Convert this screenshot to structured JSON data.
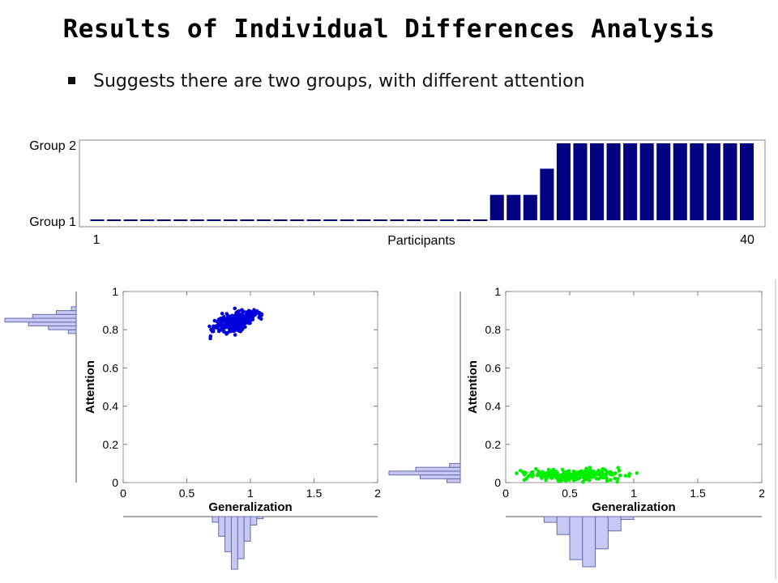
{
  "slide": {
    "title": "Results of Individual Differences Analysis",
    "bullet": "Suggests there are two groups, with different attention"
  },
  "colors": {
    "bar": "#000080",
    "group1_points": "#0000dd",
    "group2_points": "#00ee00",
    "histogram_fill": "#c8c8f4",
    "histogram_stroke": "#6a6aa8",
    "axis": "#555555"
  },
  "chart_data": [
    {
      "type": "bar",
      "title": "",
      "xlabel": "Participants",
      "ylabel": "",
      "x_ticks": [
        "1",
        "40"
      ],
      "y_ticks": [
        "Group 1",
        "Group 2"
      ],
      "ylim": [
        1,
        2
      ],
      "categories": [
        1,
        2,
        3,
        4,
        5,
        6,
        7,
        8,
        9,
        10,
        11,
        12,
        13,
        14,
        15,
        16,
        17,
        18,
        19,
        20,
        21,
        22,
        23,
        24,
        25,
        26,
        27,
        28,
        29,
        30,
        31,
        32,
        33,
        34,
        35,
        36,
        37,
        38,
        39,
        40
      ],
      "values": [
        1,
        1,
        1,
        1,
        1,
        1,
        1,
        1,
        1,
        1,
        1,
        1,
        1,
        1,
        1,
        1,
        1,
        1,
        1,
        1,
        1,
        1,
        1,
        1,
        1.33,
        1.33,
        1.33,
        1.67,
        2,
        2,
        2,
        2,
        2,
        2,
        2,
        2,
        2,
        2,
        2,
        2
      ]
    },
    {
      "type": "scatter",
      "title": "",
      "xlabel": "Generalization",
      "ylabel": "Attention",
      "xlim": [
        0,
        2
      ],
      "ylim": [
        0,
        1
      ],
      "x_ticks": [
        "0",
        "0.5",
        "1",
        "1.5",
        "2"
      ],
      "y_ticks": [
        "0",
        "0.2",
        "0.4",
        "0.6",
        "0.8",
        "1"
      ],
      "cluster": {
        "x_center": 0.88,
        "y_center": 0.84,
        "x_spread": 0.08,
        "y_spread": 0.025,
        "count": 300
      },
      "x_marginal_histogram": {
        "bins": [
          0.7,
          0.75,
          0.8,
          0.85,
          0.9,
          0.95,
          1.0,
          1.05
        ],
        "counts": [
          8,
          28,
          50,
          75,
          60,
          35,
          12,
          3
        ]
      },
      "y_marginal_histogram": {
        "bins": [
          0.78,
          0.8,
          0.82,
          0.84,
          0.86,
          0.88,
          0.9
        ],
        "counts": [
          10,
          35,
          60,
          90,
          55,
          25,
          6
        ]
      }
    },
    {
      "type": "scatter",
      "title": "",
      "xlabel": "Generalization",
      "ylabel": "Attention",
      "xlim": [
        0,
        2
      ],
      "ylim": [
        0,
        1
      ],
      "x_ticks": [
        "0",
        "0.5",
        "1",
        "1.5",
        "2"
      ],
      "y_ticks": [
        "0",
        "0.2",
        "0.4",
        "0.6",
        "0.8",
        "1"
      ],
      "cluster": {
        "x_center": 0.55,
        "y_center": 0.04,
        "x_spread": 0.18,
        "y_spread": 0.015,
        "count": 300
      },
      "x_marginal_histogram": {
        "bins": [
          0.3,
          0.4,
          0.5,
          0.6,
          0.7,
          0.8,
          0.9
        ],
        "counts": [
          8,
          25,
          60,
          70,
          45,
          20,
          4
        ]
      },
      "y_marginal_histogram": {
        "bins": [
          0.0,
          0.02,
          0.04,
          0.06,
          0.08
        ],
        "counts": [
          15,
          45,
          80,
          50,
          12
        ]
      }
    }
  ]
}
